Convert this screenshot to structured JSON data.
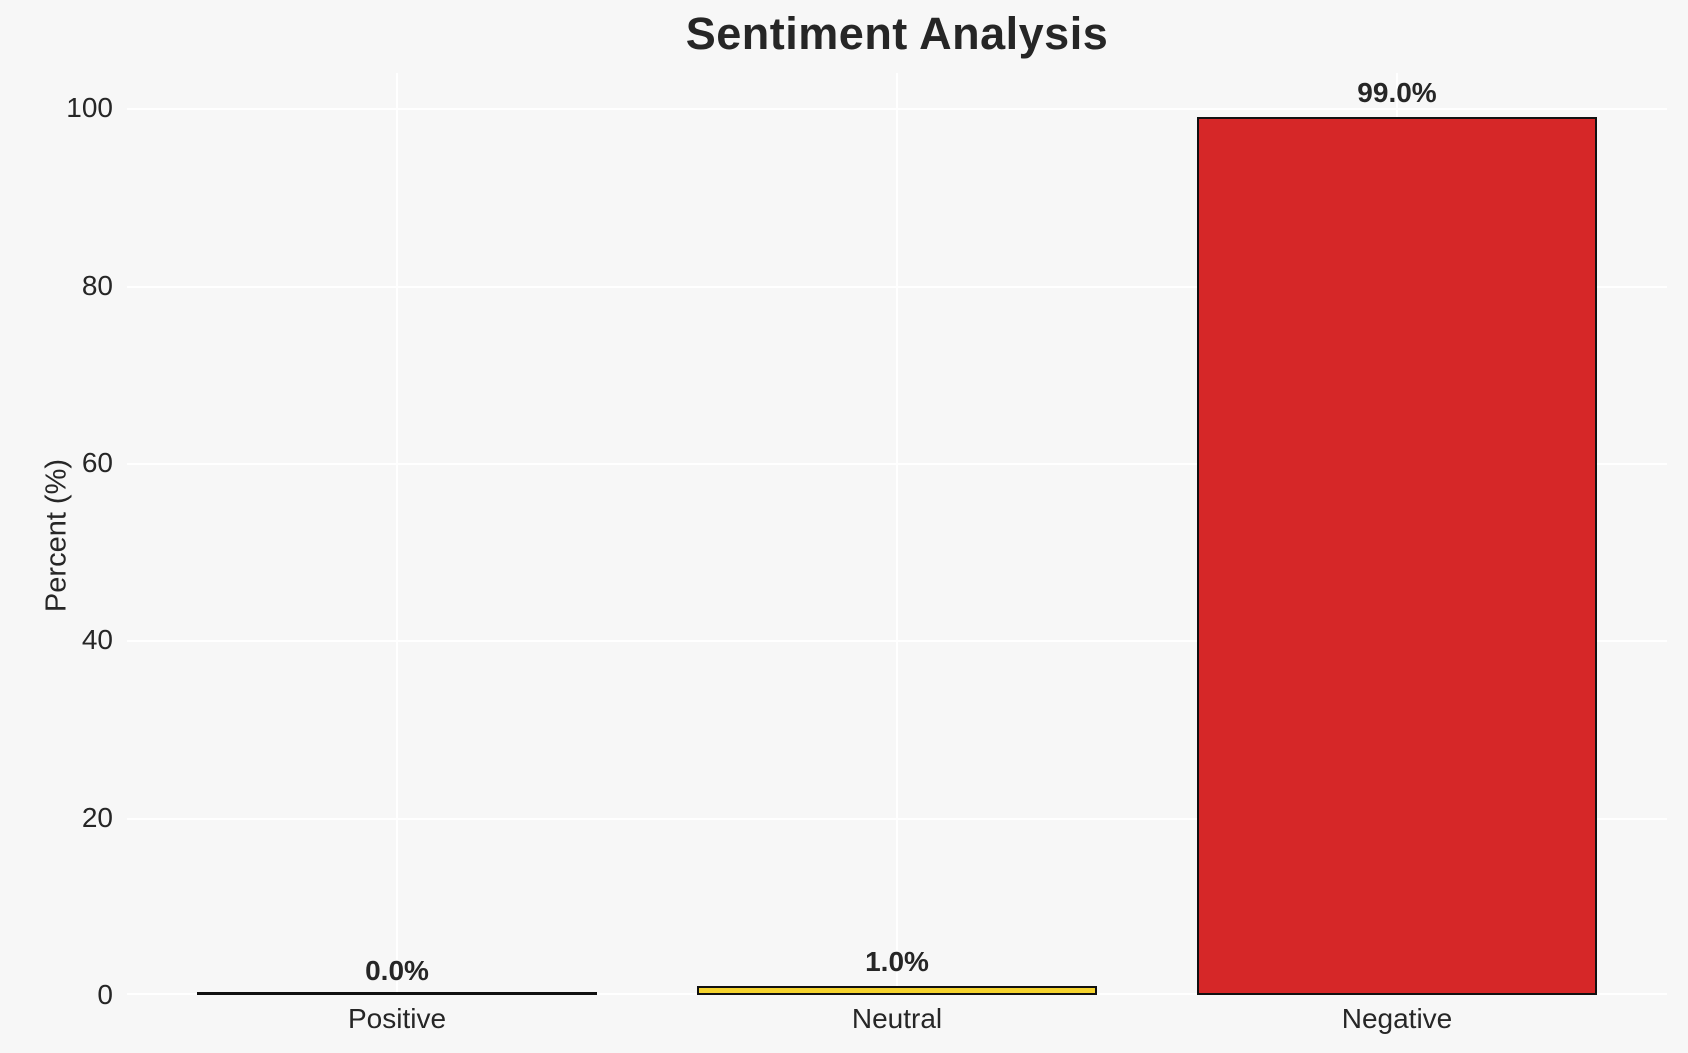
{
  "chart_data": {
    "type": "bar",
    "title": "Sentiment Analysis",
    "ylabel": "Percent (%)",
    "xlabel": "",
    "categories": [
      "Positive",
      "Neutral",
      "Negative"
    ],
    "values": [
      0.0,
      1.0,
      99.0
    ],
    "value_labels": [
      "0.0%",
      "1.0%",
      "99.0%"
    ],
    "bar_colors": [
      "#f7f7f7",
      "#f5d32d",
      "#d62728"
    ],
    "bar_edge_color": "#111111",
    "yticks": [
      0,
      20,
      40,
      60,
      80,
      100
    ],
    "ytick_labels": [
      "0",
      "20",
      "40",
      "60",
      "80",
      "100"
    ],
    "ylim": [
      0,
      104
    ],
    "grid": true,
    "grid_color": "#ffffff",
    "background_color": "#f7f7f7",
    "text_color": "#262626",
    "legend_position": "none"
  }
}
